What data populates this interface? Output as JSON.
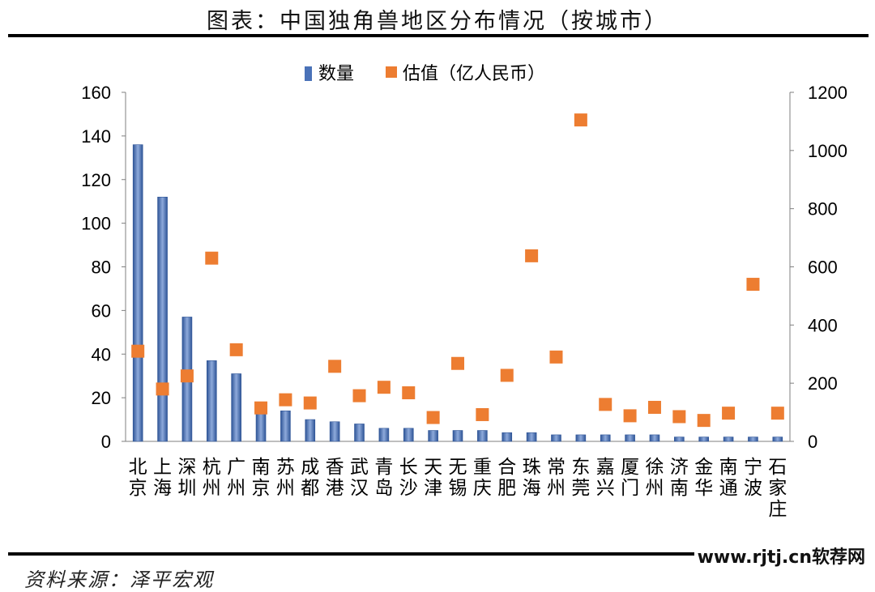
{
  "header": {
    "title": "图表：中国独角兽地区分布情况（按城市）"
  },
  "footer": {
    "source": "资料来源：泽平宏观",
    "watermark": "www.rjtj.cn软荐网"
  },
  "chart_data": {
    "type": "bar",
    "categories": [
      "北京",
      "上海",
      "深圳",
      "杭州",
      "广州",
      "南京",
      "苏州",
      "成都",
      "香港",
      "武汉",
      "青岛",
      "长沙",
      "天津",
      "无锡",
      "重庆",
      "合肥",
      "珠海",
      "常州",
      "东莞",
      "嘉兴",
      "厦门",
      "徐州",
      "济南",
      "金华",
      "南通",
      "宁波",
      "石家庄"
    ],
    "series": [
      {
        "name": "数量",
        "type": "bar",
        "axis": "left",
        "color": "#4a72b8",
        "values": [
          136,
          112,
          57,
          37,
          31,
          13,
          14,
          10,
          9,
          8,
          6,
          6,
          5,
          5,
          5,
          4,
          4,
          3,
          3,
          3,
          3,
          3,
          2,
          2,
          2,
          2,
          2
        ]
      },
      {
        "name": "估值（亿人民币）",
        "type": "scatter",
        "axis": "right",
        "color": "#ed7d31",
        "values": [
          310,
          180,
          225,
          630,
          315,
          115,
          143,
          132,
          258,
          157,
          186,
          167,
          82,
          268,
          92,
          227,
          638,
          290,
          1105,
          127,
          88,
          117,
          85,
          72,
          97,
          540,
          97
        ]
      }
    ],
    "ylim_left": [
      0,
      160
    ],
    "yticks_left": [
      "0",
      "20",
      "40",
      "60",
      "80",
      "100",
      "120",
      "140",
      "160"
    ],
    "ylim_right": [
      0,
      1200
    ],
    "yticks_right": [
      "0",
      "200",
      "400",
      "600",
      "800",
      "1000",
      "1200"
    ],
    "legend_position": "top-center",
    "grid": false
  }
}
